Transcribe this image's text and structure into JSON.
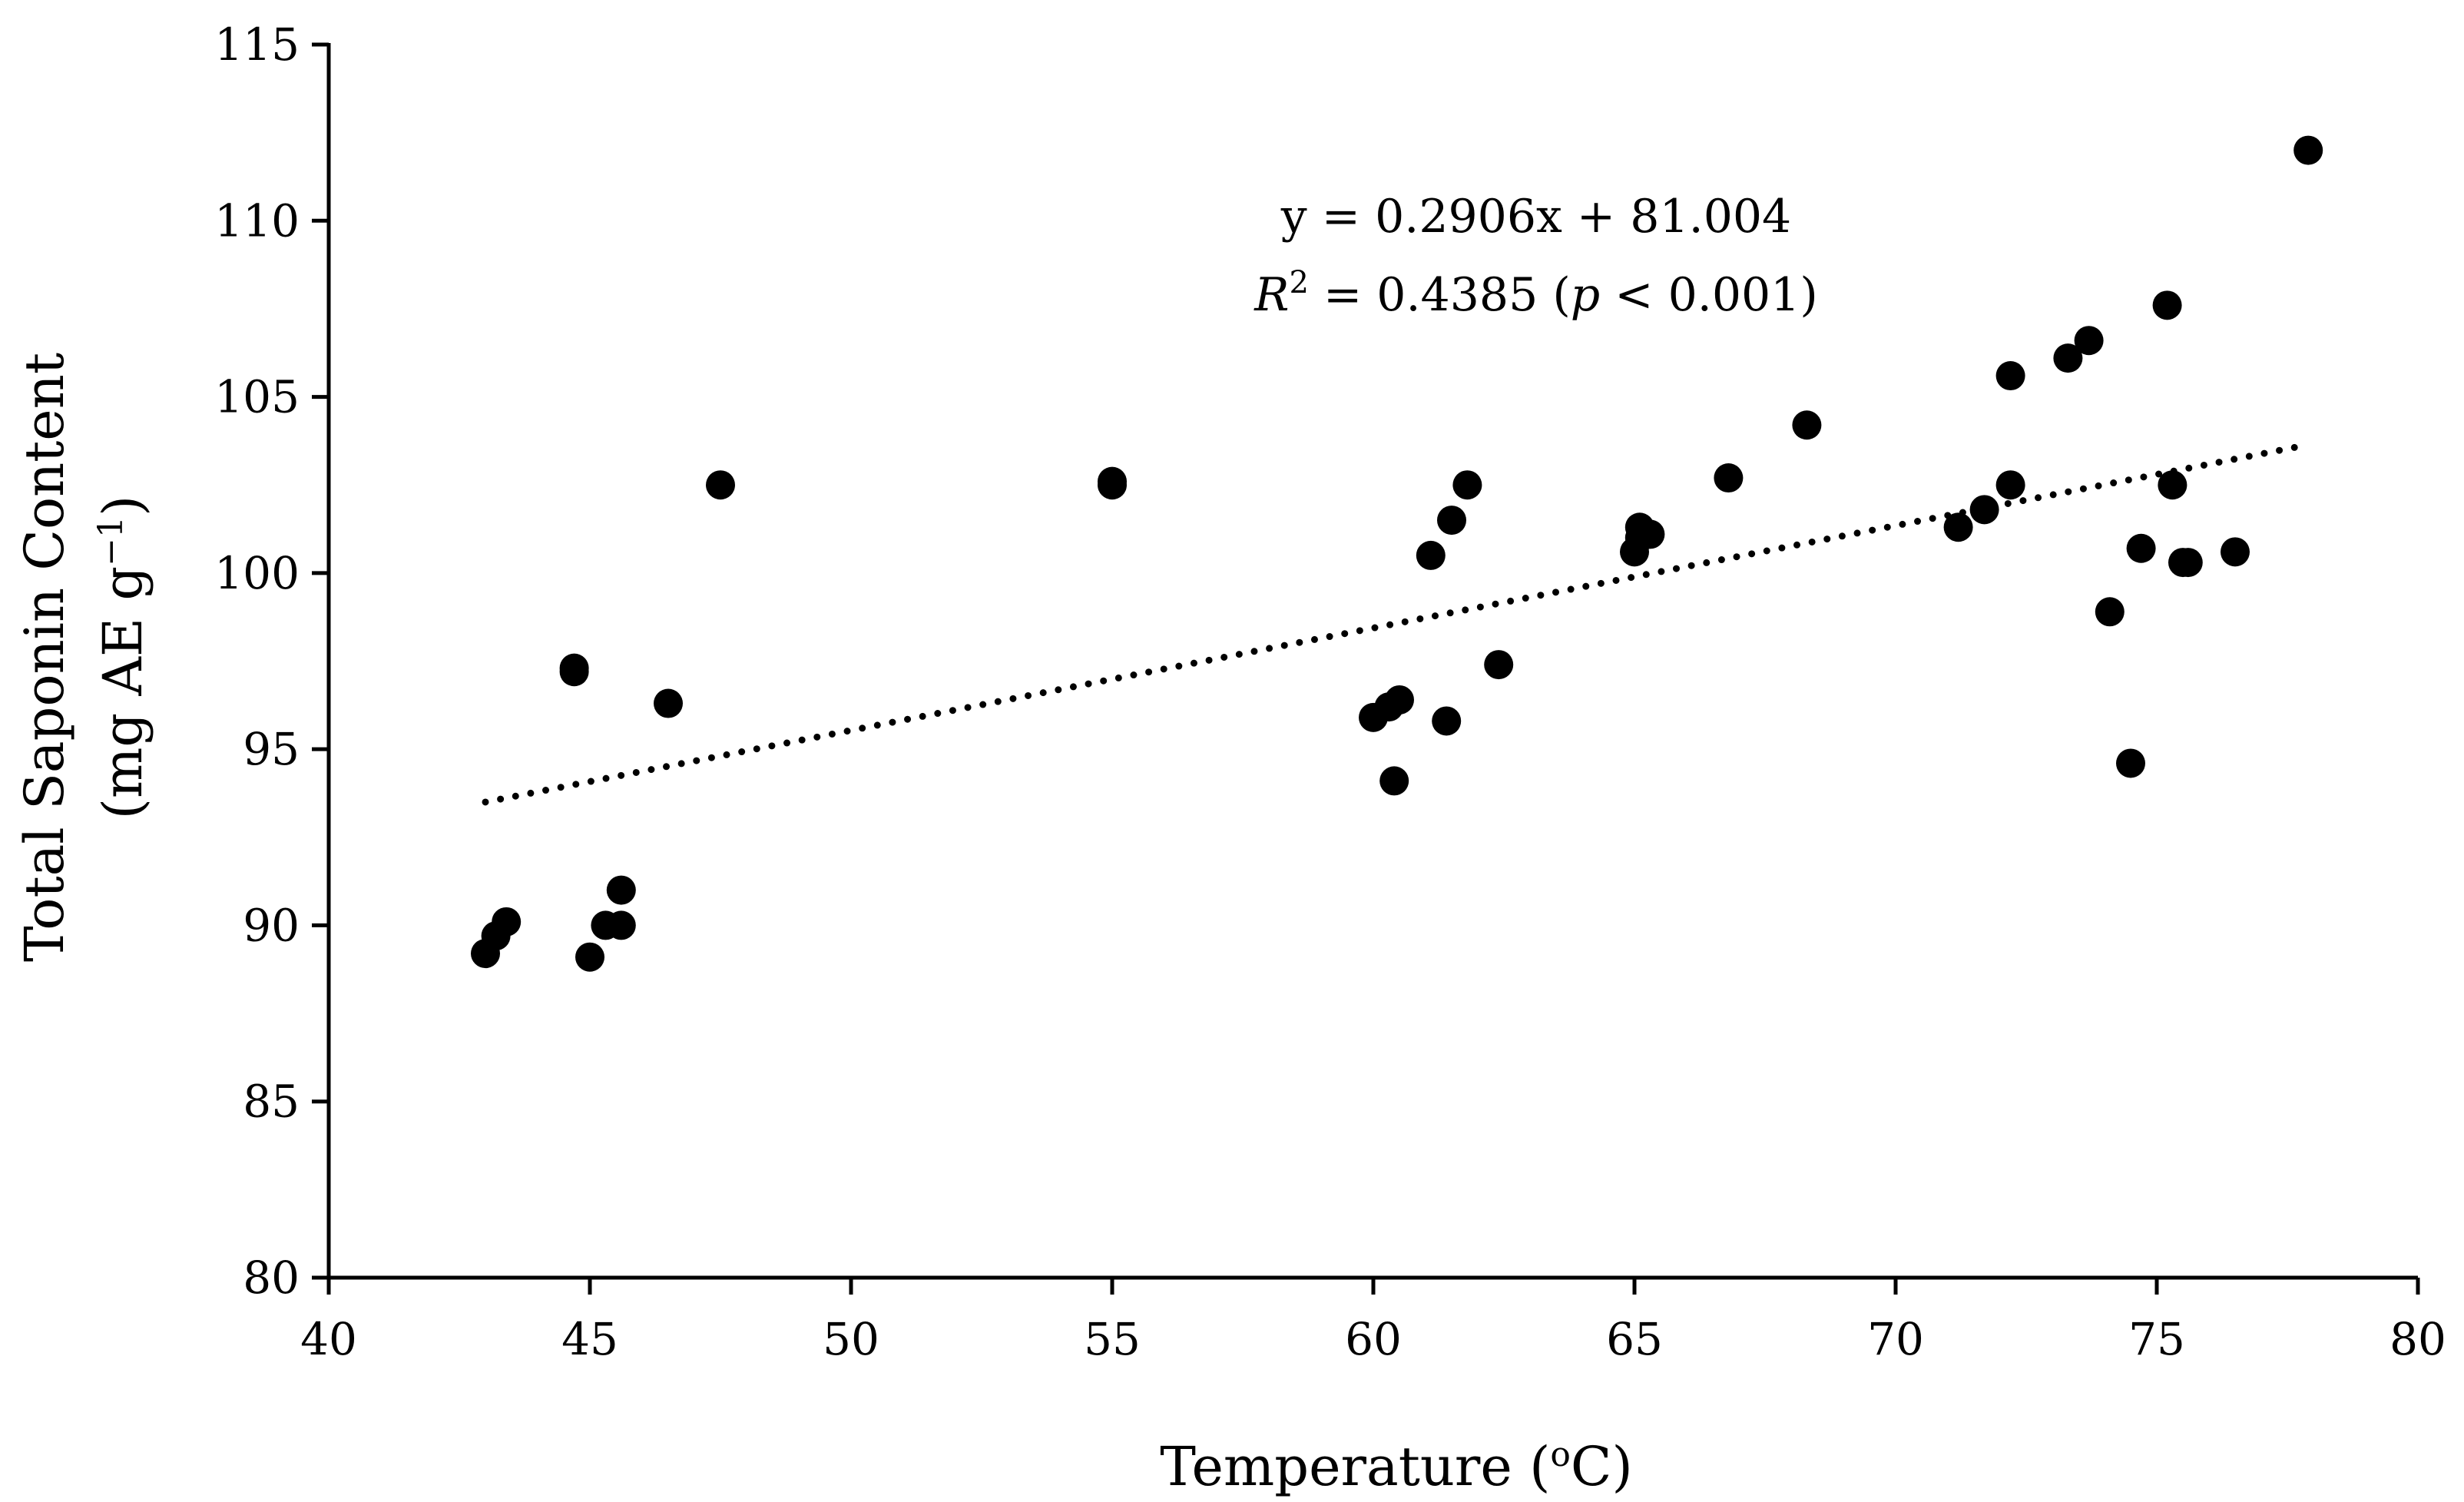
{
  "chart_data": {
    "type": "scatter",
    "title": "",
    "xlabel": "Temperature (°C)",
    "xlabel_parts": {
      "pre": "Temperature (",
      "sup": "o",
      "post": "C)"
    },
    "ylabel_line1": "Total Saponin Content",
    "ylabel_line2_parts": {
      "pre": "(mg AE g",
      "sup": "−1",
      "post": ")"
    },
    "xlim": [
      40,
      80
    ],
    "ylim": [
      80,
      115
    ],
    "xticks": [
      40,
      45,
      50,
      55,
      60,
      65,
      70,
      75,
      80
    ],
    "yticks": [
      80,
      85,
      90,
      95,
      100,
      105,
      110,
      115
    ],
    "grid": false,
    "legend": "none",
    "series": [
      {
        "name": "Total Saponin Content",
        "marker": "filled-circle",
        "color": "#000000",
        "x": [
          43.0,
          43.2,
          43.4,
          44.7,
          44.7,
          45.0,
          45.3,
          45.6,
          45.6,
          46.5,
          47.5,
          55.0,
          55.0,
          60.0,
          60.3,
          60.4,
          60.5,
          61.1,
          61.4,
          61.5,
          61.8,
          62.4,
          65.0,
          65.1,
          65.1,
          65.3,
          66.8,
          68.3,
          71.2,
          71.7,
          72.2,
          72.2,
          73.3,
          73.7,
          74.1,
          74.5,
          74.7,
          75.2,
          75.3,
          75.5,
          75.6,
          76.5,
          77.9
        ],
        "y": [
          89.2,
          89.7,
          90.1,
          97.2,
          97.3,
          89.1,
          90.0,
          90.0,
          91.0,
          96.3,
          102.5,
          102.6,
          102.5,
          95.9,
          96.2,
          94.1,
          96.4,
          100.5,
          95.8,
          101.5,
          102.5,
          97.4,
          100.6,
          101.0,
          101.3,
          101.1,
          102.7,
          104.2,
          101.3,
          101.8,
          105.6,
          102.5,
          106.1,
          106.6,
          98.9,
          94.6,
          100.7,
          107.6,
          102.5,
          100.3,
          100.3,
          100.6,
          112.0
        ]
      }
    ],
    "trendline": {
      "type": "linear",
      "style": "dotted",
      "slope": 0.2906,
      "intercept": 81.004,
      "x_range": [
        43.0,
        77.9
      ]
    },
    "annotations": {
      "equation": "y = 0.2906x + 81.004",
      "r2": {
        "R": "R",
        "sq": "2",
        "mid": " = 0.4385 (",
        "p": "p",
        "tail": " < 0.001)"
      }
    }
  }
}
